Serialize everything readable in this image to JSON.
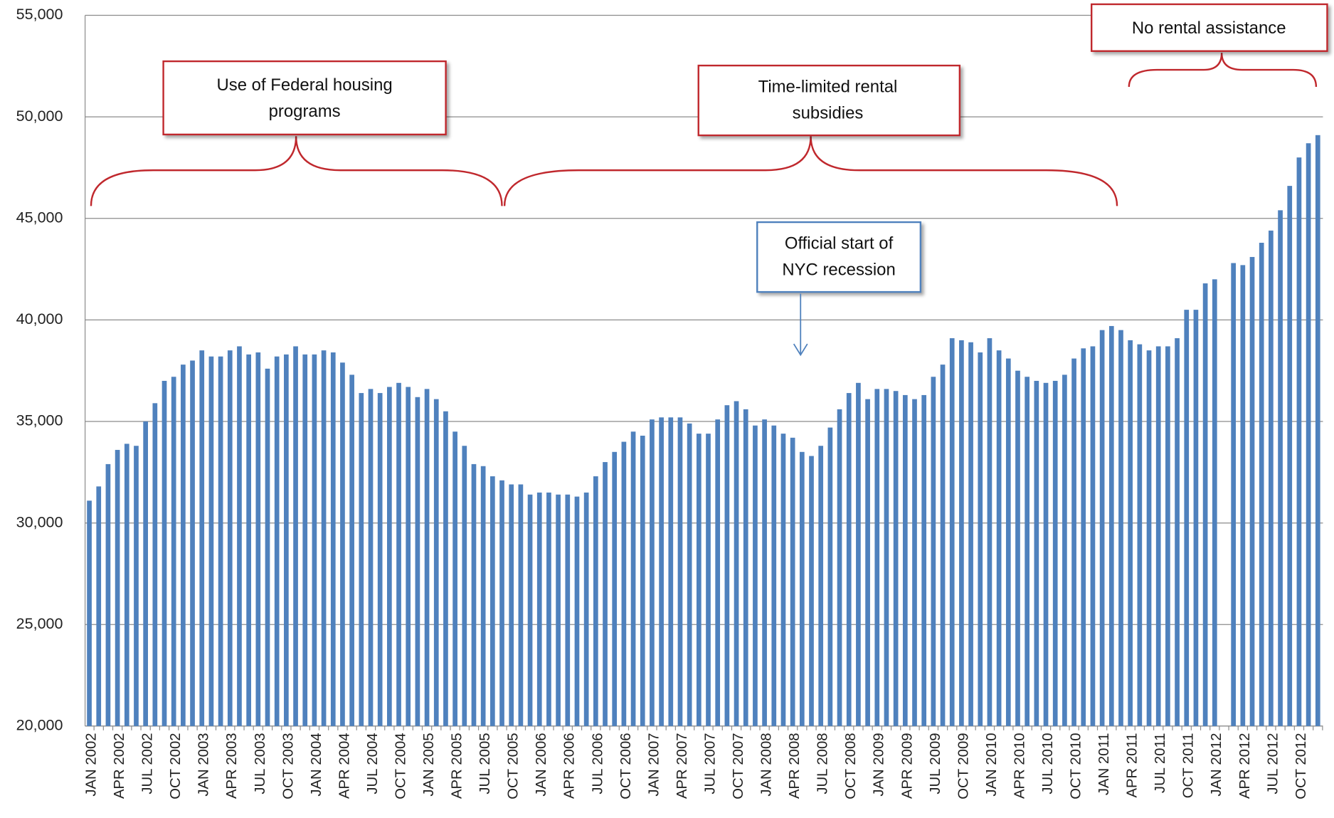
{
  "chart_data": {
    "type": "bar",
    "categories": [
      "JAN 2002",
      null,
      null,
      "APR 2002",
      null,
      null,
      "JUL 2002",
      null,
      null,
      "OCT 2002",
      null,
      null,
      "JAN 2003",
      null,
      null,
      "APR 2003",
      null,
      null,
      "JUL 2003",
      null,
      null,
      "OCT 2003",
      null,
      null,
      "JAN 2004",
      null,
      null,
      "APR 2004",
      null,
      null,
      "JUL 2004",
      null,
      null,
      "OCT 2004",
      null,
      null,
      "JAN 2005",
      null,
      null,
      "APR 2005",
      null,
      null,
      "JUL 2005",
      null,
      null,
      "OCT 2005",
      null,
      null,
      "JAN 2006",
      null,
      null,
      "APR 2006",
      null,
      null,
      "JUL 2006",
      null,
      null,
      "OCT 2006",
      null,
      null,
      "JAN 2007",
      null,
      null,
      "APR 2007",
      null,
      null,
      "JUL 2007",
      null,
      null,
      "OCT 2007",
      null,
      null,
      "JAN 2008",
      null,
      null,
      "APR 2008",
      null,
      null,
      "JUL 2008",
      null,
      null,
      "OCT 2008",
      null,
      null,
      "JAN 2009",
      null,
      null,
      "APR 2009",
      null,
      null,
      "JUL 2009",
      null,
      null,
      "OCT 2009",
      null,
      null,
      "JAN 2010",
      null,
      null,
      "APR 2010",
      null,
      null,
      "JUL 2010",
      null,
      null,
      "OCT 2010",
      null,
      null,
      "JAN 2011",
      null,
      null,
      "APR 2011",
      null,
      null,
      "JUL 2011",
      null,
      null,
      "OCT 2011",
      null,
      null,
      "JAN 2012",
      null,
      null,
      "APR 2012",
      null,
      null,
      "JUL 2012",
      null,
      null,
      "OCT 2012",
      null,
      null
    ],
    "values": [
      31100,
      31800,
      32900,
      33600,
      33900,
      33800,
      35000,
      35900,
      37000,
      37200,
      37800,
      38000,
      38500,
      38200,
      38200,
      38500,
      38700,
      38300,
      38400,
      37600,
      38200,
      38300,
      38700,
      38300,
      38300,
      38500,
      38400,
      37900,
      37300,
      36400,
      36600,
      36400,
      36700,
      36900,
      36700,
      36200,
      36600,
      36100,
      35500,
      34500,
      33800,
      32900,
      32800,
      32300,
      32100,
      31900,
      31900,
      31400,
      31500,
      31500,
      31400,
      31400,
      31300,
      31500,
      32300,
      33000,
      33500,
      34000,
      34500,
      34300,
      35100,
      35200,
      35200,
      35200,
      34900,
      34400,
      34400,
      35100,
      35800,
      36000,
      35600,
      34800,
      35100,
      34800,
      34400,
      34200,
      33500,
      33300,
      33800,
      34700,
      35600,
      36400,
      36900,
      36100,
      36600,
      36600,
      36500,
      36300,
      36100,
      36300,
      37200,
      37800,
      39100,
      39000,
      38900,
      38400,
      39100,
      38500,
      38100,
      37500,
      37200,
      37000,
      36900,
      37000,
      37300,
      38100,
      38600,
      38700,
      39500,
      39700,
      39500,
      39000,
      38800,
      38500,
      38700,
      38700,
      39100,
      40500,
      40500,
      41800,
      42000,
      null,
      42800,
      42700,
      43100,
      43800,
      44400,
      45400,
      46600,
      48000,
      48700,
      49100
    ],
    "color": "#4f81bd",
    "ylim": [
      20000,
      55000
    ],
    "yticks": [
      {
        "value": 20000,
        "label": "20,000"
      },
      {
        "value": 25000,
        "label": "25,000"
      },
      {
        "value": 30000,
        "label": "30,000"
      },
      {
        "value": 35000,
        "label": "35,000"
      },
      {
        "value": 40000,
        "label": "40,000"
      },
      {
        "value": 45000,
        "label": "45,000"
      },
      {
        "value": 50000,
        "label": "50,000"
      },
      {
        "value": 55000,
        "label": "55,000"
      }
    ],
    "grid": true,
    "annotations": [
      {
        "lines": [
          "Use of Federal housing",
          "programs"
        ]
      },
      {
        "lines": [
          "Time-limited  rental",
          "subsidies"
        ]
      },
      {
        "lines": [
          "No rental assistance"
        ]
      },
      {
        "lines": [
          "Official start of",
          "NYC recession"
        ]
      }
    ]
  }
}
